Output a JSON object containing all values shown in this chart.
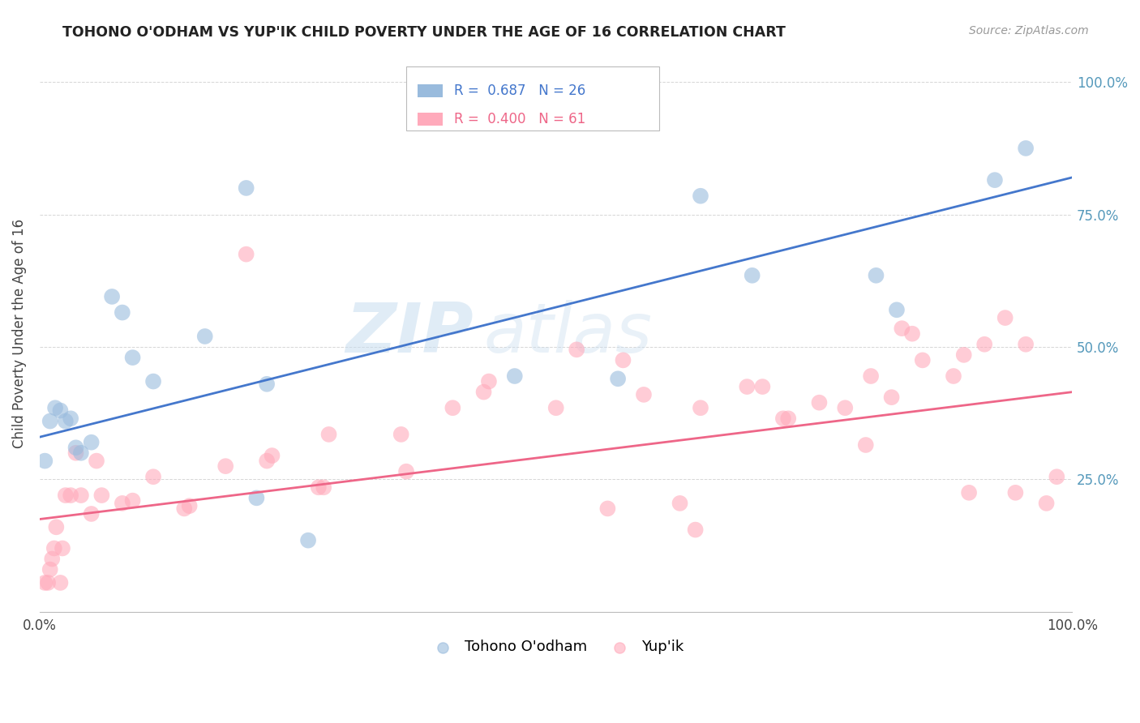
{
  "title": "TOHONO O'ODHAM VS YUP'IK CHILD POVERTY UNDER THE AGE OF 16 CORRELATION CHART",
  "source": "Source: ZipAtlas.com",
  "ylabel": "Child Poverty Under the Age of 16",
  "legend_blue_label": "Tohono O'odham",
  "legend_pink_label": "Yup'ik",
  "watermark_zip": "ZIP",
  "watermark_atlas": "atlas",
  "blue_scatter_color": "#99BBDD",
  "pink_scatter_color": "#FFAABB",
  "blue_line_color": "#4477CC",
  "pink_line_color": "#EE6688",
  "background_color": "#FFFFFF",
  "grid_color": "#CCCCCC",
  "right_tick_color": "#5599BB",
  "blue_line_start_y": 0.33,
  "blue_line_end_y": 0.82,
  "pink_line_start_y": 0.175,
  "pink_line_end_y": 0.415,
  "tohono_x": [
    0.005,
    0.01,
    0.015,
    0.02,
    0.025,
    0.03,
    0.035,
    0.04,
    0.05,
    0.07,
    0.08,
    0.09,
    0.11,
    0.16,
    0.2,
    0.21,
    0.22,
    0.26,
    0.46,
    0.56,
    0.64,
    0.69,
    0.81,
    0.83,
    0.925,
    0.955
  ],
  "tohono_y": [
    0.285,
    0.36,
    0.385,
    0.38,
    0.36,
    0.365,
    0.31,
    0.3,
    0.32,
    0.595,
    0.565,
    0.48,
    0.435,
    0.52,
    0.8,
    0.215,
    0.43,
    0.135,
    0.445,
    0.44,
    0.785,
    0.635,
    0.635,
    0.57,
    0.815,
    0.875
  ],
  "yupik_x": [
    0.005,
    0.008,
    0.01,
    0.012,
    0.014,
    0.016,
    0.02,
    0.022,
    0.025,
    0.03,
    0.035,
    0.04,
    0.05,
    0.055,
    0.06,
    0.08,
    0.09,
    0.11,
    0.14,
    0.145,
    0.18,
    0.2,
    0.22,
    0.225,
    0.27,
    0.275,
    0.28,
    0.35,
    0.355,
    0.4,
    0.43,
    0.435,
    0.5,
    0.52,
    0.55,
    0.565,
    0.585,
    0.62,
    0.635,
    0.64,
    0.685,
    0.7,
    0.72,
    0.725,
    0.755,
    0.78,
    0.8,
    0.805,
    0.825,
    0.835,
    0.845,
    0.855,
    0.885,
    0.895,
    0.9,
    0.915,
    0.935,
    0.945,
    0.955,
    0.975,
    0.985
  ],
  "yupik_y": [
    0.055,
    0.055,
    0.08,
    0.1,
    0.12,
    0.16,
    0.055,
    0.12,
    0.22,
    0.22,
    0.3,
    0.22,
    0.185,
    0.285,
    0.22,
    0.205,
    0.21,
    0.255,
    0.195,
    0.2,
    0.275,
    0.675,
    0.285,
    0.295,
    0.235,
    0.235,
    0.335,
    0.335,
    0.265,
    0.385,
    0.415,
    0.435,
    0.385,
    0.495,
    0.195,
    0.475,
    0.41,
    0.205,
    0.155,
    0.385,
    0.425,
    0.425,
    0.365,
    0.365,
    0.395,
    0.385,
    0.315,
    0.445,
    0.405,
    0.535,
    0.525,
    0.475,
    0.445,
    0.485,
    0.225,
    0.505,
    0.555,
    0.225,
    0.505,
    0.205,
    0.255
  ],
  "xlim": [
    0.0,
    1.0
  ],
  "ylim": [
    0.0,
    1.05
  ]
}
